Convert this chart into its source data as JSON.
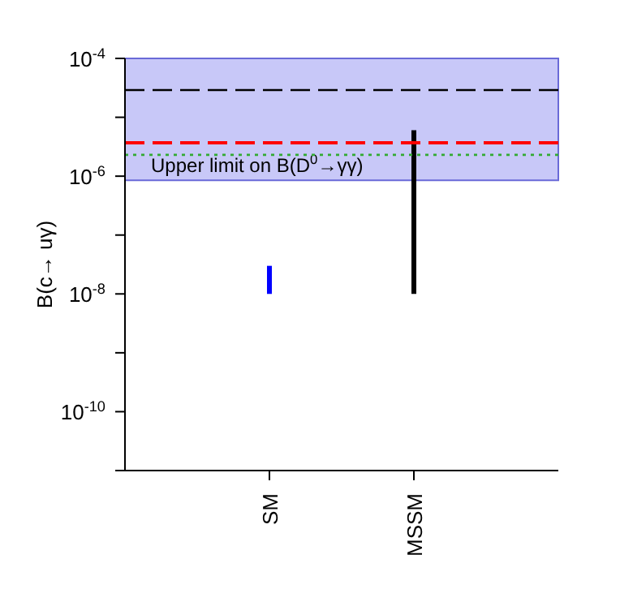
{
  "chart_data": {
    "type": "bar",
    "ylabel": "B(c→ uγ)",
    "categories": [
      "SM",
      "MSSM"
    ],
    "values": [
      2e-08,
      6e-06
    ],
    "base": [
      1e-08,
      1e-08
    ],
    "colors": [
      "#0000ff",
      "#000000"
    ],
    "log": "y",
    "ylim": [
      1e-11,
      0.0001
    ],
    "yticks": [
      {
        "value": 0.0001,
        "label": "10$^{-4}$"
      },
      {
        "value": 1e-05,
        "label": null
      },
      {
        "value": 1e-06,
        "label": "10$^{-6}$"
      },
      {
        "value": 1e-07,
        "label": null
      },
      {
        "value": 1e-08,
        "label": "10$^{-8}$"
      },
      {
        "value": 1e-09,
        "label": null
      },
      {
        "value": 1e-10,
        "label": "10$^{-10}$"
      },
      {
        "value": 1e-11,
        "label": null
      }
    ],
    "bands": [
      {
        "axis": "y",
        "from": 8.5e-07,
        "to": 0.0001,
        "label": "Upper limit on B(D$^{0}$→γγ)",
        "color": "#c8c8f8"
      }
    ],
    "ref_lines": [
      {
        "axis": "y",
        "value": 2.9e-05,
        "color": "#000000",
        "line_style": "dashed"
      },
      {
        "axis": "y",
        "value": 3.7e-06,
        "color": "#ff0000",
        "line_style": "dashed"
      },
      {
        "axis": "y",
        "value": 2.3e-06,
        "color": "#33aa33",
        "line_style": "dotted"
      }
    ],
    "grid": false
  }
}
